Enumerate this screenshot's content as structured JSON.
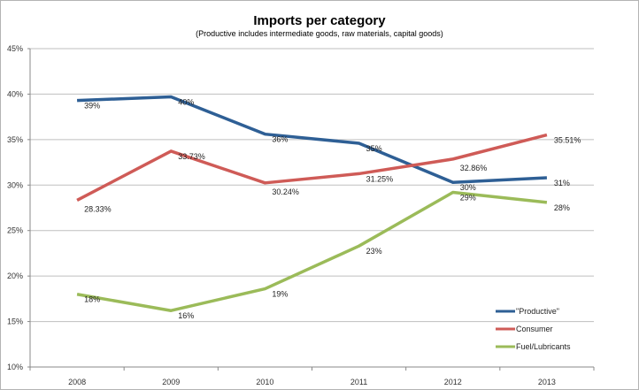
{
  "chart_data": {
    "type": "line",
    "title": "Imports per category",
    "subtitle": "(Productive includes intermediate goods, raw materials, capital goods)",
    "categories": [
      "2008",
      "2009",
      "2010",
      "2011",
      "2012",
      "2013"
    ],
    "ylim": [
      10,
      45
    ],
    "yticks": [
      "10%",
      "15%",
      "20%",
      "25%",
      "30%",
      "35%",
      "40%",
      "45%"
    ],
    "grid": true,
    "legend": "bottom-right",
    "series": [
      {
        "name": "\"Productive\"",
        "color": "#2e5f95",
        "values": [
          39.3,
          39.7,
          35.6,
          34.6,
          30.3,
          30.8
        ],
        "labels": [
          "39%",
          "40%",
          "36%",
          "35%",
          "30%",
          "31%"
        ]
      },
      {
        "name": "Consumer",
        "color": "#cf5b57",
        "values": [
          28.33,
          33.73,
          30.24,
          31.25,
          32.86,
          35.51
        ],
        "labels": [
          "28.33%",
          "33.73%",
          "30.24%",
          "31.25%",
          "32.86%",
          "35.51%"
        ]
      },
      {
        "name": "Fuel/Lubricants",
        "color": "#9bbb59",
        "values": [
          18.0,
          16.2,
          18.6,
          23.3,
          29.2,
          28.1
        ],
        "labels": [
          "18%",
          "16%",
          "19%",
          "23%",
          "29%",
          "28%"
        ]
      }
    ]
  }
}
